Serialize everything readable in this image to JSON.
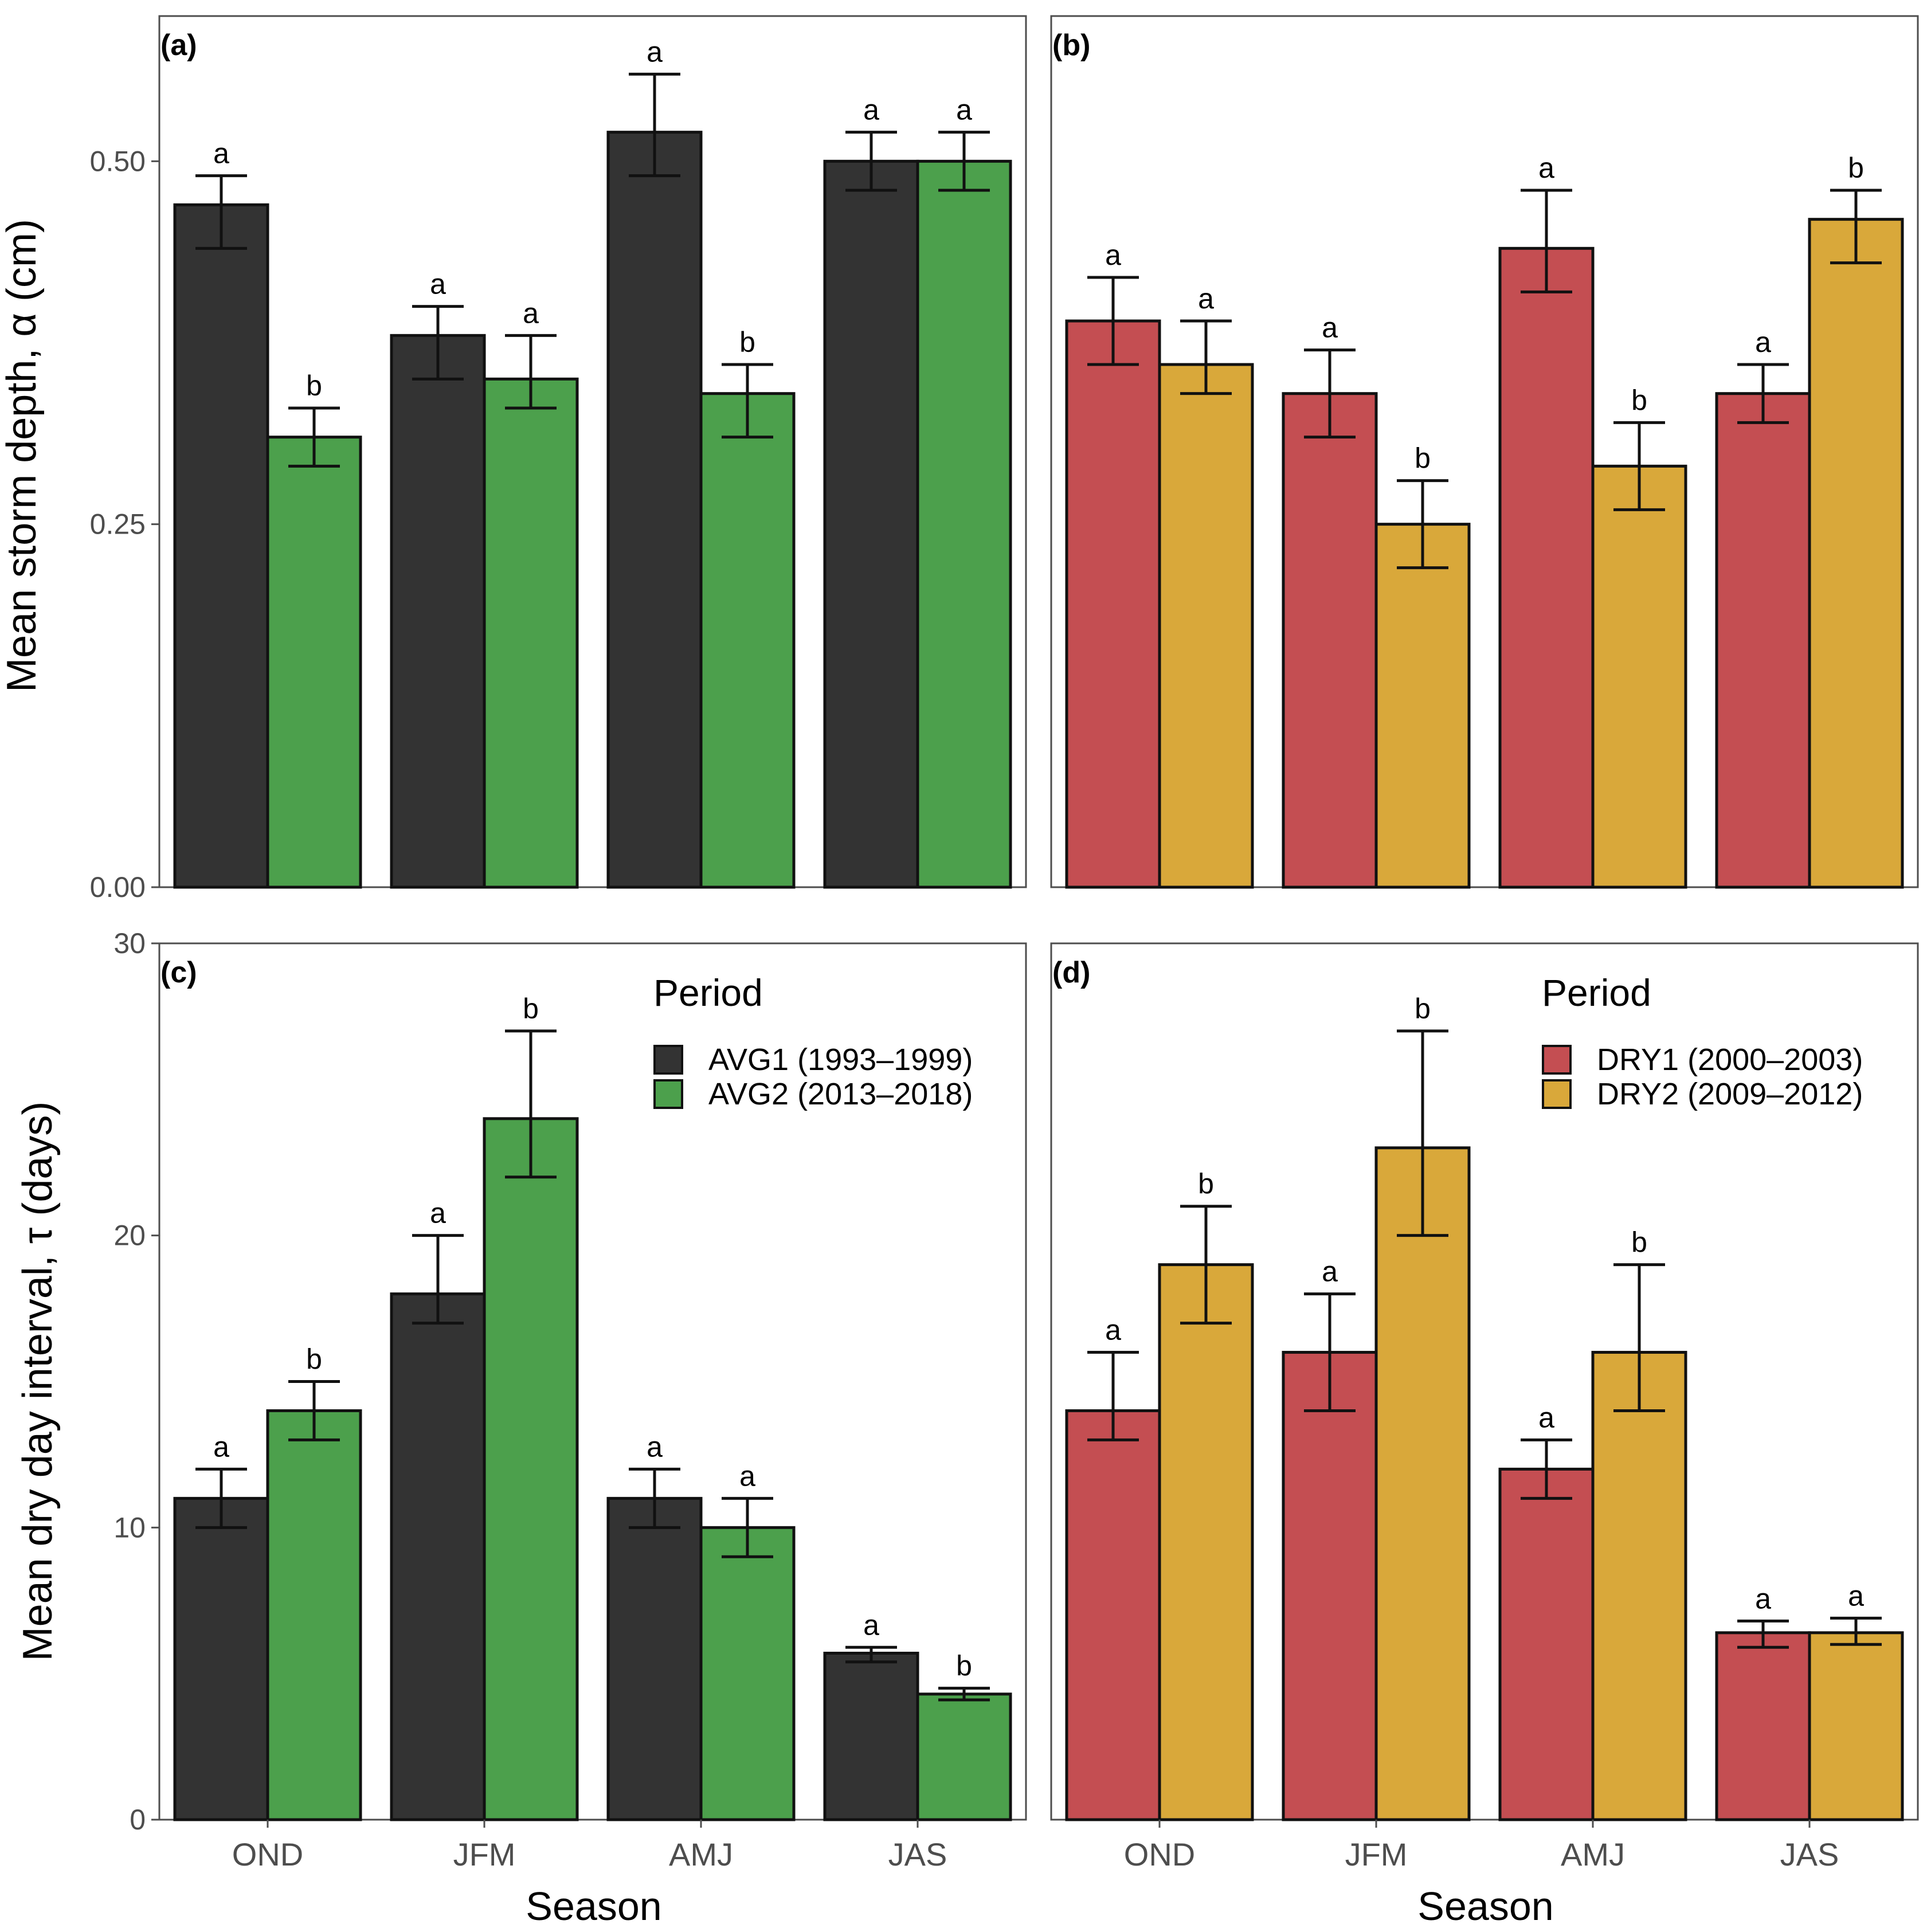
{
  "figure": {
    "xlabel": "Season",
    "ylabel_top": "Mean storm depth, α (cm)",
    "ylabel_bottom": "Mean dry day interval, τ (days)"
  },
  "chart_data": [
    {
      "id": "a",
      "panel_label": "(a)",
      "type": "bar",
      "categories": [
        "OND",
        "JFM",
        "AMJ",
        "JAS"
      ],
      "ylim": [
        0,
        0.6
      ],
      "yticks": [
        "0.00",
        "0.25",
        "0.50"
      ],
      "ytick_values": [
        0,
        0.25,
        0.5
      ],
      "series": [
        {
          "name": "AVG1 (1993–1999)",
          "color": "#333333",
          "values": [
            0.47,
            0.38,
            0.52,
            0.5
          ],
          "err_low": [
            0.44,
            0.35,
            0.49,
            0.48
          ],
          "err_high": [
            0.49,
            0.4,
            0.56,
            0.52
          ],
          "letters": [
            "a",
            "a",
            "a",
            "a"
          ]
        },
        {
          "name": "AVG2 (2013–2018)",
          "color": "#4ca04c",
          "values": [
            0.31,
            0.35,
            0.34,
            0.5
          ],
          "err_low": [
            0.29,
            0.33,
            0.31,
            0.48
          ],
          "err_high": [
            0.33,
            0.38,
            0.36,
            0.52
          ],
          "letters": [
            "b",
            "a",
            "b",
            "a"
          ]
        }
      ]
    },
    {
      "id": "b",
      "panel_label": "(b)",
      "type": "bar",
      "categories": [
        "OND",
        "JFM",
        "AMJ",
        "JAS"
      ],
      "ylim": [
        0,
        0.6
      ],
      "yticks": [],
      "ytick_values": [
        0,
        0.25,
        0.5
      ],
      "series": [
        {
          "name": "DRY1 (2000–2003)",
          "color": "#c44e52",
          "values": [
            0.39,
            0.34,
            0.44,
            0.34
          ],
          "err_low": [
            0.36,
            0.31,
            0.41,
            0.32
          ],
          "err_high": [
            0.42,
            0.37,
            0.48,
            0.36
          ],
          "letters": [
            "a",
            "a",
            "a",
            "a"
          ]
        },
        {
          "name": "DRY2 (2009–2012)",
          "color": "#d9a83a",
          "values": [
            0.36,
            0.25,
            0.29,
            0.46
          ],
          "err_low": [
            0.34,
            0.22,
            0.26,
            0.43
          ],
          "err_high": [
            0.39,
            0.28,
            0.32,
            0.48
          ],
          "letters": [
            "a",
            "b",
            "b",
            "b"
          ]
        }
      ]
    },
    {
      "id": "c",
      "panel_label": "(c)",
      "type": "bar",
      "categories": [
        "OND",
        "JFM",
        "AMJ",
        "JAS"
      ],
      "ylim": [
        0,
        30
      ],
      "yticks": [
        "0",
        "10",
        "20",
        "30"
      ],
      "ytick_values": [
        0,
        10,
        20,
        30
      ],
      "legend_title": "Period",
      "series": [
        {
          "name": "AVG1 (1993–1999)",
          "color": "#333333",
          "values": [
            11,
            18,
            11,
            5.7
          ],
          "err_low": [
            10,
            17,
            10,
            5.4
          ],
          "err_high": [
            12,
            20,
            12,
            5.9
          ],
          "letters": [
            "a",
            "a",
            "a",
            "a"
          ]
        },
        {
          "name": "AVG2 (2013–2018)",
          "color": "#4ca04c",
          "values": [
            14,
            24,
            10,
            4.3
          ],
          "err_low": [
            13,
            22,
            9,
            4.1
          ],
          "err_high": [
            15,
            27,
            11,
            4.5
          ],
          "letters": [
            "b",
            "b",
            "a",
            "b"
          ]
        }
      ]
    },
    {
      "id": "d",
      "panel_label": "(d)",
      "type": "bar",
      "categories": [
        "OND",
        "JFM",
        "AMJ",
        "JAS"
      ],
      "ylim": [
        0,
        30
      ],
      "yticks": [],
      "ytick_values": [
        0,
        10,
        20,
        30
      ],
      "legend_title": "Period",
      "series": [
        {
          "name": "DRY1 (2000–2003)",
          "color": "#c44e52",
          "values": [
            14,
            16,
            12,
            6.4
          ],
          "err_low": [
            13,
            14,
            11,
            5.9
          ],
          "err_high": [
            16,
            18,
            13,
            6.8
          ],
          "letters": [
            "a",
            "a",
            "a",
            "a"
          ]
        },
        {
          "name": "DRY2 (2009–2012)",
          "color": "#d9a83a",
          "values": [
            19,
            23,
            16,
            6.4
          ],
          "err_low": [
            17,
            20,
            14,
            6.0
          ],
          "err_high": [
            21,
            27,
            19,
            6.9
          ],
          "letters": [
            "b",
            "b",
            "b",
            "a"
          ]
        }
      ]
    }
  ]
}
